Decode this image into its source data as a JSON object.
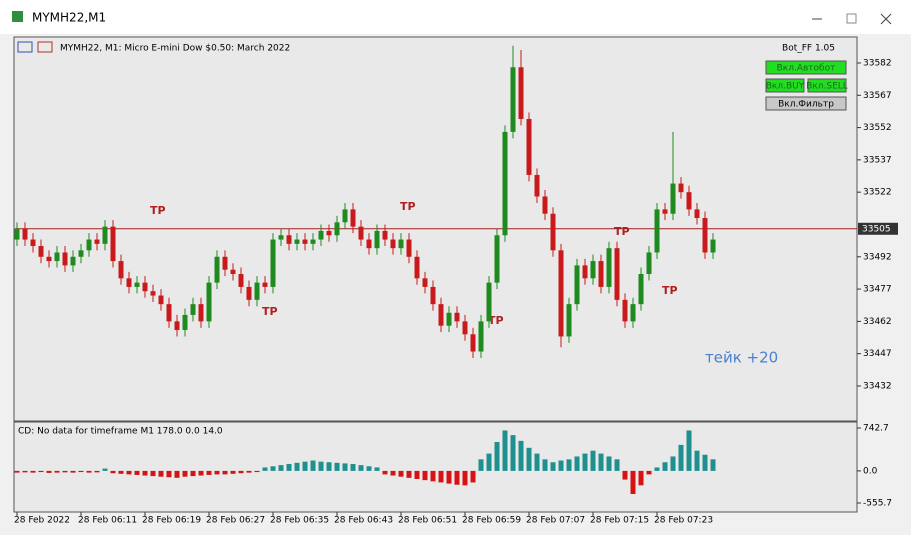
{
  "window": {
    "title": "MYMH22,M1"
  },
  "chart_data": {
    "type": "candlestick",
    "title": "MYMH22, M1:  Micro E-mini Dow $0.50: March 2022",
    "x": [
      "28 Feb 2022",
      null,
      null,
      null,
      null,
      null,
      null,
      null,
      "28 Feb 06:11",
      null,
      null,
      null,
      null,
      null,
      null,
      null,
      "28 Feb 06:19",
      null,
      null,
      null,
      null,
      null,
      null,
      null,
      "28 Feb 06:27",
      null,
      null,
      null,
      null,
      null,
      null,
      null,
      "28 Feb 06:35",
      null,
      null,
      null,
      null,
      null,
      null,
      null,
      "28 Feb 06:43",
      null,
      null,
      null,
      null,
      null,
      null,
      null,
      "28 Feb 06:51",
      null,
      null,
      null,
      null,
      null,
      null,
      null,
      "28 Feb 06:59",
      null,
      null,
      null,
      null,
      null,
      null,
      null,
      "28 Feb 07:07",
      null,
      null,
      null,
      null,
      null,
      null,
      null,
      "28 Feb 07:15",
      null,
      null,
      null,
      null,
      null,
      null,
      null,
      "28 Feb 07:23",
      null,
      null,
      null,
      null,
      null,
      null,
      null
    ],
    "open": [
      33500,
      33505,
      33500,
      33497,
      33492,
      33490,
      33494,
      33488,
      33492,
      33495,
      33500,
      33498,
      33506,
      33490,
      33482,
      33478,
      33480,
      33476,
      33474,
      33470,
      33462,
      33458,
      33465,
      33470,
      33462,
      33480,
      33492,
      33486,
      33484,
      33478,
      33472,
      33480,
      33478,
      33500,
      33502,
      33498,
      33500,
      33498,
      33500,
      33504,
      33502,
      33508,
      33514,
      33506,
      33500,
      33496,
      33504,
      33500,
      33496,
      33500,
      33492,
      33482,
      33478,
      33470,
      33460,
      33466,
      33462,
      33456,
      33448,
      33462,
      33480,
      33502,
      33550,
      33580,
      33556,
      33530,
      33520,
      33512,
      33495,
      33455,
      33470,
      33488,
      33482,
      33490,
      33478,
      33496,
      33472,
      33462,
      33470,
      33484,
      33494,
      33514,
      33512,
      33526,
      33522,
      33514,
      33510,
      33494
    ],
    "high": [
      33508,
      33508,
      33503,
      33500,
      33495,
      33497,
      33497,
      33495,
      33498,
      33503,
      33503,
      33509,
      33509,
      33493,
      33485,
      33483,
      33483,
      33479,
      33477,
      33473,
      33465,
      33468,
      33473,
      33473,
      33483,
      33495,
      33495,
      33489,
      33487,
      33481,
      33483,
      33483,
      33503,
      33505,
      33505,
      33503,
      33503,
      33503,
      33507,
      33507,
      33511,
      33517,
      33517,
      33509,
      33503,
      33507,
      33507,
      33503,
      33503,
      33503,
      33495,
      33485,
      33481,
      33473,
      33469,
      33469,
      33465,
      33459,
      33465,
      33483,
      33505,
      33553,
      33590,
      33588,
      33559,
      33533,
      33523,
      33515,
      33498,
      33473,
      33491,
      33491,
      33493,
      33493,
      33499,
      33499,
      33475,
      33473,
      33487,
      33497,
      33517,
      33517,
      33550,
      33529,
      33525,
      33517,
      33513,
      33503
    ],
    "low": [
      33497,
      33497,
      33494,
      33489,
      33487,
      33487,
      33485,
      33485,
      33489,
      33492,
      33495,
      33495,
      33487,
      33479,
      33475,
      33475,
      33473,
      33471,
      33467,
      33459,
      33455,
      33455,
      33462,
      33459,
      33459,
      33477,
      33483,
      33481,
      33475,
      33469,
      33469,
      33475,
      33475,
      33497,
      33495,
      33495,
      33495,
      33495,
      33497,
      33499,
      33499,
      33505,
      33503,
      33497,
      33493,
      33493,
      33497,
      33493,
      33493,
      33489,
      33479,
      33475,
      33467,
      33457,
      33457,
      33459,
      33453,
      33445,
      33445,
      33459,
      33477,
      33499,
      33547,
      33553,
      33527,
      33517,
      33509,
      33492,
      33450,
      33452,
      33467,
      33479,
      33479,
      33475,
      33475,
      33469,
      33459,
      33459,
      33467,
      33481,
      33491,
      33509,
      33509,
      33519,
      33511,
      33507,
      33491,
      33491
    ],
    "close": [
      33505,
      33500,
      33497,
      33492,
      33490,
      33494,
      33488,
      33492,
      33495,
      33500,
      33498,
      33506,
      33490,
      33482,
      33478,
      33480,
      33476,
      33474,
      33470,
      33462,
      33458,
      33465,
      33470,
      33462,
      33480,
      33492,
      33486,
      33484,
      33478,
      33472,
      33480,
      33478,
      33500,
      33502,
      33498,
      33500,
      33498,
      33500,
      33504,
      33502,
      33508,
      33514,
      33506,
      33500,
      33496,
      33504,
      33500,
      33496,
      33500,
      33492,
      33482,
      33478,
      33470,
      33460,
      33466,
      33462,
      33456,
      33448,
      33462,
      33480,
      33502,
      33550,
      33580,
      33556,
      33530,
      33520,
      33512,
      33495,
      33455,
      33470,
      33488,
      33482,
      33490,
      33478,
      33496,
      33472,
      33462,
      33470,
      33484,
      33494,
      33514,
      33512,
      33526,
      33522,
      33514,
      33510,
      33494,
      33500
    ],
    "up_color": "#1f8a1f",
    "down_color": "#c81a1c",
    "ylim": [
      33416.2,
      33593.6
    ],
    "yticks": [
      33582,
      33567,
      33552,
      33537,
      33522,
      33492,
      33477,
      33462,
      33447,
      33432
    ],
    "current_price": 33505,
    "tp_label": "TP",
    "annotation": "тейк +20",
    "expert": {
      "name": "Bot_FF 1.05",
      "buttons": [
        "Вкл.Автобот",
        "Вкл.BUY",
        "Вкл.SELL",
        "Вкл.Фильтр"
      ]
    },
    "indicator": {
      "type": "bar",
      "title": "CD: No data for timeframe M1 178.0 0.0 14.0",
      "values": [
        -30,
        -25,
        -30,
        -20,
        -35,
        -30,
        -25,
        -30,
        -20,
        -30,
        -25,
        40,
        -40,
        -50,
        -60,
        -70,
        -80,
        -90,
        -100,
        -110,
        -120,
        -100,
        -90,
        -80,
        -70,
        -60,
        -60,
        -50,
        -40,
        -30,
        -20,
        60,
        80,
        100,
        120,
        140,
        160,
        180,
        160,
        150,
        140,
        130,
        120,
        100,
        80,
        60,
        -60,
        -80,
        -100,
        -120,
        -140,
        -160,
        -180,
        -200,
        -220,
        -240,
        -250,
        -200,
        200,
        300,
        500,
        700,
        620,
        520,
        400,
        300,
        200,
        150,
        180,
        200,
        250,
        300,
        350,
        300,
        250,
        200,
        -150,
        -400,
        -250,
        -60,
        60,
        150,
        250,
        450,
        700,
        350,
        280,
        200
      ],
      "up_color": "#1f8f8f",
      "down_color": "#d41414",
      "ylim": [
        -711.5,
        846.6
      ],
      "yticks": [
        742.7,
        {
          "value": 0,
          "label": "0.0"
        },
        -555.7
      ]
    }
  }
}
